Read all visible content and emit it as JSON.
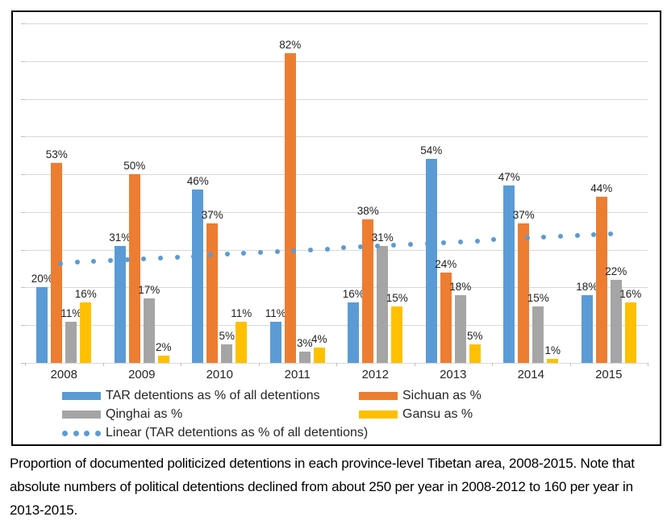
{
  "chart_data": {
    "type": "bar",
    "title": "",
    "categories": [
      "2008",
      "2009",
      "2010",
      "2011",
      "2012",
      "2013",
      "2014",
      "2015"
    ],
    "value_suffix": "%",
    "ylim": [
      0,
      90
    ],
    "gridline_step": 10,
    "grid": true,
    "legend_position": "bottom",
    "data_labels": true,
    "series": [
      {
        "name": "TAR detentions as % of all detentions",
        "color": "#5B9BD5",
        "values": [
          20,
          31,
          46,
          11,
          16,
          54,
          47,
          18
        ]
      },
      {
        "name": "Sichuan as %",
        "color": "#ED7D31",
        "values": [
          53,
          50,
          37,
          82,
          38,
          24,
          37,
          44
        ]
      },
      {
        "name": "Qinghai as %",
        "color": "#A5A5A5",
        "values": [
          11,
          17,
          5,
          3,
          31,
          18,
          15,
          22
        ]
      },
      {
        "name": "Gansu as %",
        "color": "#FFC000",
        "values": [
          16,
          2,
          11,
          4,
          15,
          5,
          1,
          16
        ]
      }
    ],
    "trendline": {
      "name": "Linear (TAR detentions as % of all detentions)",
      "of_series": "TAR detentions as % of all detentions",
      "style": "dotted",
      "color": "#5B9BD5",
      "start_value": 26.4,
      "end_value": 34.3
    }
  },
  "caption": {
    "text": "Proportion of documented politicized detentions in each province-level Tibetan area, 2008-2015. Note that absolute numbers of political detentions declined from about 250 per year in 2008-2012 to 160 per year in 2013-2015."
  }
}
